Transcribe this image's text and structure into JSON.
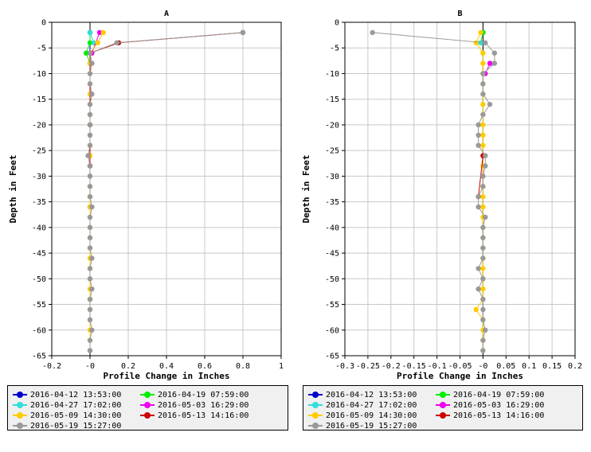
{
  "chart_data": [
    {
      "type": "line",
      "title": "A",
      "xlabel": "Profile Change in Inches",
      "ylabel": "Depth in Feet",
      "xlim": [
        -0.2,
        1.0
      ],
      "ylim": [
        -65,
        0
      ],
      "xticks": [
        -0.2,
        0,
        0.2,
        0.4,
        0.6,
        0.8,
        1
      ],
      "xtick_labels": [
        "-0.2",
        "-0",
        "0.2",
        "0.4",
        "0.6",
        "0.8",
        "1"
      ],
      "yticks": [
        0,
        -5,
        -10,
        -15,
        -20,
        -25,
        -30,
        -35,
        -40,
        -45,
        -50,
        -55,
        -60,
        -65
      ],
      "ytick_labels": [
        "0",
        "-5",
        "-10",
        "-15",
        "-20",
        "-25",
        "-30",
        "-35",
        "-40",
        "-45",
        "-50",
        "-55",
        "-60",
        "-65"
      ],
      "grid": true,
      "legend_position": "bottom",
      "series": [
        {
          "name": "2016-04-12 13:53:00",
          "color": "#0000cc",
          "points": [
            [
              0,
              -2
            ],
            [
              0,
              -36
            ]
          ]
        },
        {
          "name": "2016-04-19 07:59:00",
          "color": "#00ee00",
          "points": [
            [
              0,
              -2
            ],
            [
              0,
              -4
            ],
            [
              -0.02,
              -6
            ],
            [
              0,
              -8
            ],
            [
              0,
              -54
            ]
          ]
        },
        {
          "name": "2016-04-27 17:02:00",
          "color": "#33dddd",
          "points": [
            [
              0,
              -2
            ],
            [
              0.02,
              -4
            ]
          ]
        },
        {
          "name": "2016-05-03 16:29:00",
          "color": "#ee00ee",
          "points": [
            [
              0.05,
              -2
            ],
            [
              0.01,
              -6
            ]
          ]
        },
        {
          "name": "2016-05-09 14:30:00",
          "color": "#ffcc00",
          "points": [
            [
              0.07,
              -2
            ],
            [
              0.04,
              -4
            ],
            [
              0,
              -6
            ],
            [
              0,
              -8
            ],
            [
              0,
              -10
            ],
            [
              0,
              -12
            ],
            [
              0,
              -14
            ],
            [
              0,
              -16
            ],
            [
              0,
              -18
            ],
            [
              0,
              -20
            ],
            [
              0,
              -22
            ],
            [
              0,
              -24
            ],
            [
              0,
              -26
            ],
            [
              0,
              -28
            ],
            [
              0,
              -30
            ],
            [
              0,
              -32
            ],
            [
              0,
              -34
            ],
            [
              0,
              -36
            ],
            [
              0,
              -38
            ],
            [
              0,
              -40
            ],
            [
              0,
              -42
            ],
            [
              0,
              -44
            ],
            [
              0,
              -46
            ],
            [
              0,
              -48
            ],
            [
              0,
              -50
            ],
            [
              0,
              -52
            ],
            [
              0,
              -54
            ],
            [
              0,
              -56
            ],
            [
              0,
              -58
            ],
            [
              0,
              -60
            ],
            [
              0,
              -62
            ],
            [
              0,
              -64
            ]
          ]
        },
        {
          "name": "2016-05-13 14:16:00",
          "color": "#cc0000",
          "points": [
            [
              0.8,
              -2
            ],
            [
              0.15,
              -4
            ],
            [
              0,
              -6
            ],
            [
              0,
              -20
            ],
            [
              0,
              -28
            ]
          ]
        },
        {
          "name": "2016-05-19 15:27:00",
          "color": "#999999",
          "points": [
            [
              0.8,
              -2
            ],
            [
              0.14,
              -4
            ],
            [
              0,
              -6
            ],
            [
              0.01,
              -8
            ],
            [
              0,
              -10
            ],
            [
              0,
              -12
            ],
            [
              0.01,
              -14
            ],
            [
              0,
              -16
            ],
            [
              0,
              -18
            ],
            [
              0,
              -20
            ],
            [
              0,
              -22
            ],
            [
              0,
              -24
            ],
            [
              -0.01,
              -26
            ],
            [
              0,
              -28
            ],
            [
              0,
              -30
            ],
            [
              0,
              -32
            ],
            [
              0,
              -34
            ],
            [
              0.01,
              -36
            ],
            [
              0,
              -38
            ],
            [
              0,
              -40
            ],
            [
              0,
              -42
            ],
            [
              0,
              -44
            ],
            [
              0.01,
              -46
            ],
            [
              0,
              -48
            ],
            [
              0,
              -50
            ],
            [
              0.01,
              -52
            ],
            [
              0,
              -54
            ],
            [
              0,
              -56
            ],
            [
              0,
              -58
            ],
            [
              0.01,
              -60
            ],
            [
              0,
              -62
            ],
            [
              0,
              -64
            ]
          ]
        }
      ]
    },
    {
      "type": "line",
      "title": "B",
      "xlabel": "Profile Change in Inches",
      "ylabel": "Depth in Feet",
      "xlim": [
        -0.3,
        0.2
      ],
      "ylim": [
        -65,
        0
      ],
      "xticks": [
        -0.3,
        -0.25,
        -0.2,
        -0.15,
        -0.1,
        -0.05,
        0,
        0.05,
        0.1,
        0.15,
        0.2
      ],
      "xtick_labels": [
        "-0.3",
        "-0.25",
        "-0.2",
        "-0.15",
        "-0.1",
        "-0.05",
        "-0",
        "0.05",
        "0.1",
        "0.15",
        "0.2"
      ],
      "yticks": [
        0,
        -5,
        -10,
        -15,
        -20,
        -25,
        -30,
        -35,
        -40,
        -45,
        -50,
        -55,
        -60,
        -65
      ],
      "ytick_labels": [
        "0",
        "-5",
        "-10",
        "-15",
        "-20",
        "-25",
        "-30",
        "-35",
        "-40",
        "-45",
        "-50",
        "-55",
        "-60",
        "-65"
      ],
      "grid": true,
      "legend_position": "bottom",
      "series": [
        {
          "name": "2016-04-12 13:53:00",
          "color": "#0000cc",
          "points": [
            [
              0,
              -2
            ]
          ]
        },
        {
          "name": "2016-04-19 07:59:00",
          "color": "#00ee00",
          "points": [
            [
              0,
              -2
            ],
            [
              -0.005,
              -4
            ]
          ]
        },
        {
          "name": "2016-04-27 17:02:00",
          "color": "#33dddd",
          "points": [
            [
              -0.005,
              -4
            ]
          ]
        },
        {
          "name": "2016-05-03 16:29:00",
          "color": "#ee00ee",
          "points": [
            [
              0.015,
              -8
            ],
            [
              0.005,
              -10
            ]
          ]
        },
        {
          "name": "2016-05-09 14:30:00",
          "color": "#ffcc00",
          "points": [
            [
              -0.005,
              -2
            ],
            [
              -0.015,
              -4
            ],
            [
              0,
              -6
            ],
            [
              0,
              -8
            ],
            [
              0,
              -10
            ],
            [
              0,
              -12
            ],
            [
              0,
              -14
            ],
            [
              0,
              -16
            ],
            [
              0,
              -18
            ],
            [
              0,
              -20
            ],
            [
              0,
              -22
            ],
            [
              0,
              -24
            ],
            [
              0,
              -26
            ],
            [
              0,
              -28
            ],
            [
              0,
              -30
            ],
            [
              0,
              -32
            ],
            [
              0,
              -34
            ],
            [
              0,
              -36
            ],
            [
              0,
              -38
            ],
            [
              0,
              -40
            ],
            [
              0,
              -42
            ],
            [
              0,
              -44
            ],
            [
              0,
              -46
            ],
            [
              0,
              -48
            ],
            [
              0,
              -50
            ],
            [
              0,
              -52
            ],
            [
              0,
              -54
            ],
            [
              -0.015,
              -56
            ],
            [
              0,
              -58
            ],
            [
              0,
              -60
            ],
            [
              0,
              -62
            ],
            [
              0,
              -64
            ]
          ]
        },
        {
          "name": "2016-05-13 14:16:00",
          "color": "#cc0000",
          "points": [
            [
              0,
              -26
            ],
            [
              -0.01,
              -34
            ]
          ]
        },
        {
          "name": "2016-05-19 15:27:00",
          "color": "#999999",
          "points": [
            [
              -0.24,
              -2
            ],
            [
              0.005,
              -4
            ],
            [
              0.025,
              -6
            ],
            [
              0.025,
              -8
            ],
            [
              0,
              -10
            ],
            [
              0,
              -12
            ],
            [
              0,
              -14
            ],
            [
              0.015,
              -16
            ],
            [
              0,
              -18
            ],
            [
              -0.01,
              -20
            ],
            [
              -0.01,
              -22
            ],
            [
              -0.01,
              -24
            ],
            [
              0.005,
              -26
            ],
            [
              0.005,
              -28
            ],
            [
              0,
              -30
            ],
            [
              0,
              -32
            ],
            [
              -0.01,
              -34
            ],
            [
              -0.01,
              -36
            ],
            [
              0.005,
              -38
            ],
            [
              0,
              -40
            ],
            [
              0,
              -42
            ],
            [
              0,
              -44
            ],
            [
              0,
              -46
            ],
            [
              -0.01,
              -48
            ],
            [
              0,
              -50
            ],
            [
              -0.01,
              -52
            ],
            [
              0,
              -54
            ],
            [
              0,
              -56
            ],
            [
              0,
              -58
            ],
            [
              0.005,
              -60
            ],
            [
              0,
              -62
            ],
            [
              0,
              -64
            ]
          ]
        }
      ]
    }
  ]
}
